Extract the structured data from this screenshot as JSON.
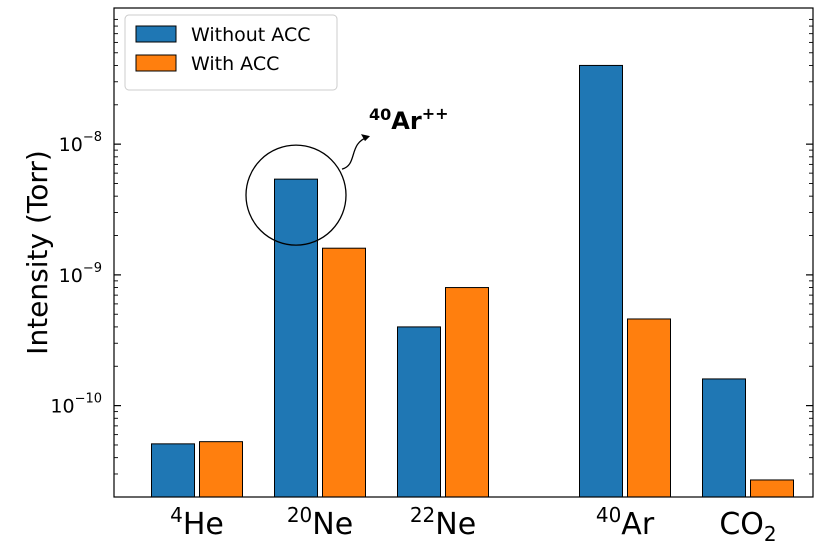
{
  "chart_data": {
    "type": "bar",
    "categories": [
      {
        "sup": "4",
        "base": "He",
        "sub": ""
      },
      {
        "sup": "20",
        "base": "Ne",
        "sub": ""
      },
      {
        "sup": "22",
        "base": "Ne",
        "sub": ""
      },
      {
        "sup": "40",
        "base": "Ar",
        "sub": ""
      },
      {
        "sup": "",
        "base": "CO",
        "sub": "2"
      }
    ],
    "series": [
      {
        "name": "Without ACC",
        "color": "#1f77b4",
        "values": [
          5.1e-11,
          5.4e-09,
          4e-10,
          4e-08,
          1.6e-10
        ]
      },
      {
        "name": "With ACC",
        "color": "#ff7f0e",
        "values": [
          5.3e-11,
          1.6e-09,
          8e-10,
          4.6e-10,
          2.7e-11
        ]
      }
    ],
    "ylabel": "Intensity (Torr)",
    "yscale": "log",
    "ylim": [
      2e-11,
      1.1e-07
    ],
    "yticks": [
      {
        "value": 1e-10,
        "base": "10",
        "exp": "−10"
      },
      {
        "value": 1e-09,
        "base": "10",
        "exp": "−9"
      },
      {
        "value": 1e-08,
        "base": "10",
        "exp": "−8"
      }
    ],
    "legend": {
      "position": "top-left"
    },
    "annotation": {
      "sup": "40",
      "base": "Ar",
      "charge": "++",
      "target_category": 1,
      "target_series": 0
    }
  }
}
